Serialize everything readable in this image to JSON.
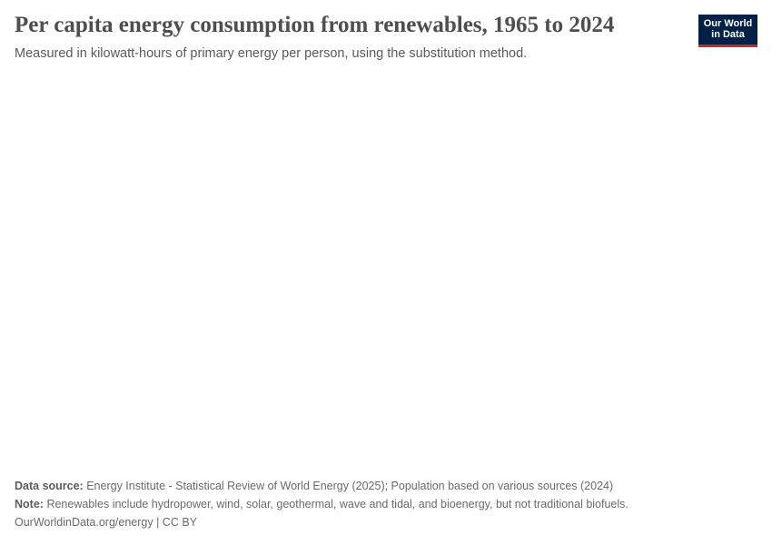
{
  "header": {
    "title": "Per capita energy consumption from renewables, 1965 to 2024",
    "subtitle": "Measured in kilowatt-hours of primary energy per person, using the substitution method."
  },
  "logo": {
    "line1": "Our World",
    "line2": "in Data"
  },
  "footer": {
    "source_label": "Data source:",
    "source": "Energy Institute - Statistical Review of World Energy (2025); Population based on various sources (2024)",
    "note_label": "Note:",
    "note": "Renewables include hydropower, wind, solar, geothermal, wave and tidal, and bioenergy, but not traditional biofuels.",
    "link": "OurWorldinData.org/energy | CC BY"
  }
}
